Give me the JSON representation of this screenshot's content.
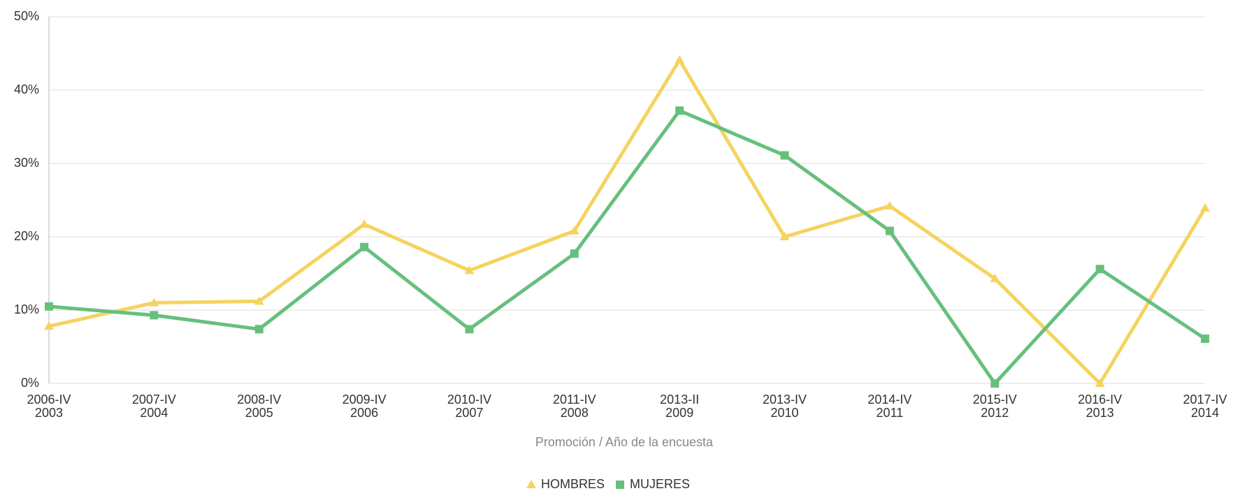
{
  "chart_data": {
    "type": "line",
    "x_label": "Promoción / Año de la encuesta",
    "categories": [
      [
        "2006-IV",
        "2003"
      ],
      [
        "2007-IV",
        "2004"
      ],
      [
        "2008-IV",
        "2005"
      ],
      [
        "2009-IV",
        "2006"
      ],
      [
        "2010-IV",
        "2007"
      ],
      [
        "2011-IV",
        "2008"
      ],
      [
        "2013-II",
        "2009"
      ],
      [
        "2013-IV",
        "2010"
      ],
      [
        "2014-IV",
        "2011"
      ],
      [
        "2015-IV",
        "2012"
      ],
      [
        "2016-IV",
        "2013"
      ],
      [
        "2017-IV",
        "2014"
      ]
    ],
    "series": [
      {
        "name": "HOMBRES",
        "color": "#f5d35f",
        "marker": "triangle",
        "values": [
          7.8,
          11.0,
          11.2,
          21.7,
          15.4,
          20.8,
          44.1,
          20.0,
          24.2,
          14.3,
          0,
          23.9
        ]
      },
      {
        "name": "MUJERES",
        "color": "#66c07c",
        "marker": "square",
        "values": [
          10.5,
          9.3,
          7.4,
          18.6,
          7.4,
          17.7,
          37.2,
          31.1,
          20.8,
          0,
          15.6,
          6.1
        ]
      }
    ],
    "ylim": [
      0,
      50
    ],
    "yticks": [
      {
        "value": 0,
        "label": "0%"
      },
      {
        "value": 10,
        "label": "10%"
      },
      {
        "value": 20,
        "label": "20%"
      },
      {
        "value": 30,
        "label": "30%"
      },
      {
        "value": 40,
        "label": "40%"
      },
      {
        "value": 50,
        "label": "50%"
      }
    ],
    "grid": true,
    "legend": "bottom"
  }
}
